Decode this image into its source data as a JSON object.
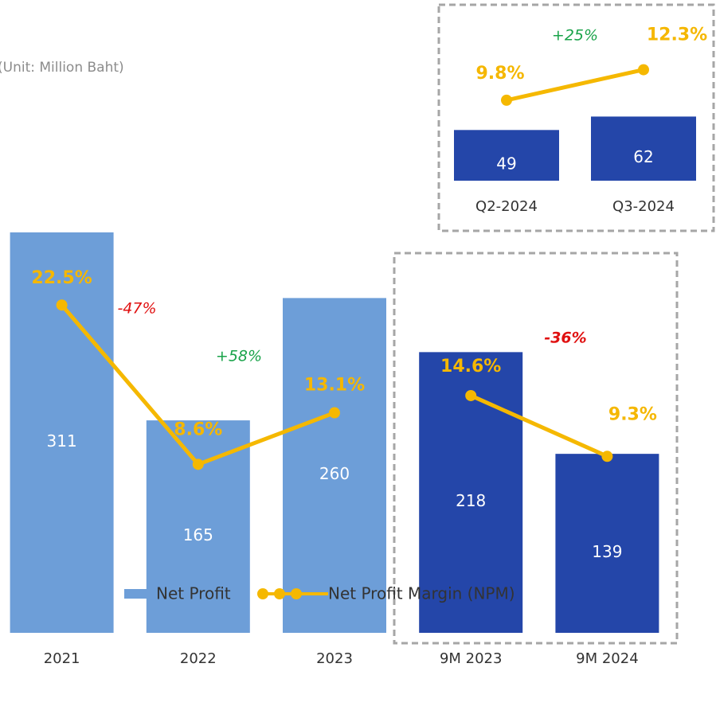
{
  "chart_data": [
    {
      "type": "combo",
      "subtitle": "(Unit: Million Baht)",
      "categories": [
        "2021",
        "2022",
        "2023",
        "9M 2023",
        "9M 2024"
      ],
      "series": [
        {
          "name": "Net Profit",
          "kind": "bar",
          "colors": [
            "#6d9ed8",
            "#6d9ed8",
            "#6d9ed8",
            "#2446a9",
            "#2446a9"
          ],
          "values": [
            311,
            165,
            260,
            218,
            139
          ]
        },
        {
          "name": "Net Profit Margin (NPM)",
          "kind": "line",
          "axis": "y2",
          "color": "#f5b800",
          "values": [
            22.5,
            8.6,
            13.1,
            14.6,
            9.3
          ],
          "value_labels": [
            "22.5%",
            "8.6%",
            "13.1%",
            "14.6%",
            "9.3%"
          ]
        }
      ],
      "ylim": [
        0,
        340
      ],
      "y2lim": [
        -6.1,
        32.1
      ],
      "annotations": [
        {
          "text": "-47%",
          "color": "#e01010"
        },
        {
          "text": "+58%",
          "color": "#1aa34a"
        },
        {
          "text": "-36%",
          "color": "#e01010"
        }
      ]
    },
    {
      "type": "combo",
      "categories": [
        "Q2-2024",
        "Q3-2024"
      ],
      "series": [
        {
          "kind": "bar",
          "colors": [
            "#2446a9",
            "#2446a9"
          ],
          "values": [
            49,
            62
          ]
        },
        {
          "kind": "line",
          "axis": "y2",
          "color": "#f5b800",
          "values": [
            9.8,
            12.3
          ],
          "value_labels": [
            "9.8%",
            "12.3%"
          ]
        }
      ],
      "ylim": [
        0,
        128.5
      ],
      "y2lim": [
        3.2,
        14.1
      ],
      "annotations": [
        {
          "text": "+25%",
          "color": "#1aa34a"
        }
      ]
    }
  ]
}
